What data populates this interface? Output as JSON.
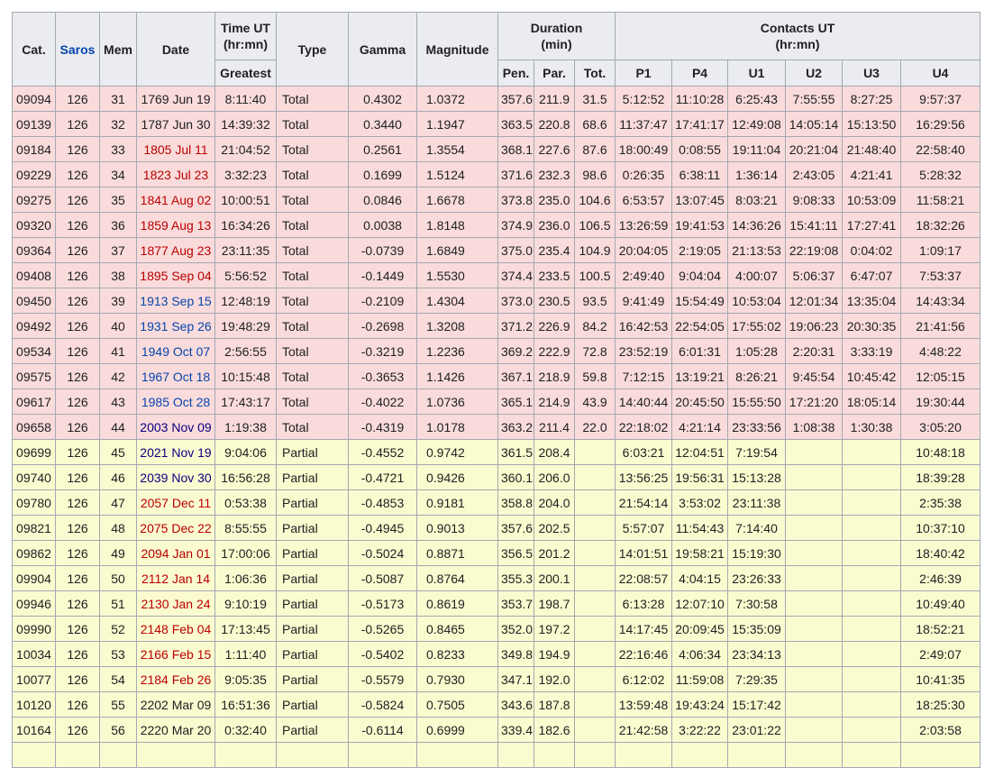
{
  "table": {
    "header": {
      "cat": "Cat.",
      "saros": "Saros",
      "mem": "Mem",
      "date": "Date",
      "time_ut_1": "Time UT",
      "time_ut_2": "(hr:mn)",
      "greatest": "Greatest",
      "type": "Type",
      "gamma": "Gamma",
      "magnitude": "Magnitude",
      "duration_1": "Duration",
      "duration_2": "(min)",
      "pen": "Pen.",
      "par": "Par.",
      "tot": "Tot.",
      "contacts_1": "Contacts UT",
      "contacts_2": "(hr:mn)",
      "p1": "P1",
      "p4": "P4",
      "u1": "U1",
      "u2": "U2",
      "u3": "U3",
      "u4": "U4"
    },
    "colors": {
      "header_bg": "#eaecf0",
      "border": "#a2a9b1",
      "text": "#202122",
      "total_row_bg": "#fadbdb",
      "partial_row_bg": "#fbfbd0",
      "link_blue": "#0645ad",
      "link_visited": "#0b0080",
      "link_red": "#ba0000",
      "page_bg": "#ffffff"
    },
    "rows": [
      {
        "cat": "09094",
        "saros": "126",
        "mem": "31",
        "date": "1769 Jun 19",
        "date_link": "plain",
        "greatest": "8:11:40",
        "type": "Total",
        "gamma": "0.4302",
        "magnitude": "1.0372",
        "pen": "357.6",
        "par": "211.9",
        "tot": "31.5",
        "p1": "5:12:52",
        "p4": "11:10:28",
        "u1": "6:25:43",
        "u2": "7:55:55",
        "u3": "8:27:25",
        "u4": "9:57:37"
      },
      {
        "cat": "09139",
        "saros": "126",
        "mem": "32",
        "date": "1787 Jun 30",
        "date_link": "plain",
        "greatest": "14:39:32",
        "type": "Total",
        "gamma": "0.3440",
        "magnitude": "1.1947",
        "pen": "363.5",
        "par": "220.8",
        "tot": "68.6",
        "p1": "11:37:47",
        "p4": "17:41:17",
        "u1": "12:49:08",
        "u2": "14:05:14",
        "u3": "15:13:50",
        "u4": "16:29:56"
      },
      {
        "cat": "09184",
        "saros": "126",
        "mem": "33",
        "date": "1805 Jul 11",
        "date_link": "red",
        "greatest": "21:04:52",
        "type": "Total",
        "gamma": "0.2561",
        "magnitude": "1.3554",
        "pen": "368.1",
        "par": "227.6",
        "tot": "87.6",
        "p1": "18:00:49",
        "p4": "0:08:55",
        "u1": "19:11:04",
        "u2": "20:21:04",
        "u3": "21:48:40",
        "u4": "22:58:40"
      },
      {
        "cat": "09229",
        "saros": "126",
        "mem": "34",
        "date": "1823 Jul 23",
        "date_link": "red",
        "greatest": "3:32:23",
        "type": "Total",
        "gamma": "0.1699",
        "magnitude": "1.5124",
        "pen": "371.6",
        "par": "232.3",
        "tot": "98.6",
        "p1": "0:26:35",
        "p4": "6:38:11",
        "u1": "1:36:14",
        "u2": "2:43:05",
        "u3": "4:21:41",
        "u4": "5:28:32"
      },
      {
        "cat": "09275",
        "saros": "126",
        "mem": "35",
        "date": "1841 Aug 02",
        "date_link": "red",
        "greatest": "10:00:51",
        "type": "Total",
        "gamma": "0.0846",
        "magnitude": "1.6678",
        "pen": "373.8",
        "par": "235.0",
        "tot": "104.6",
        "p1": "6:53:57",
        "p4": "13:07:45",
        "u1": "8:03:21",
        "u2": "9:08:33",
        "u3": "10:53:09",
        "u4": "11:58:21"
      },
      {
        "cat": "09320",
        "saros": "126",
        "mem": "36",
        "date": "1859 Aug 13",
        "date_link": "red",
        "greatest": "16:34:26",
        "type": "Total",
        "gamma": "0.0038",
        "magnitude": "1.8148",
        "pen": "374.9",
        "par": "236.0",
        "tot": "106.5",
        "p1": "13:26:59",
        "p4": "19:41:53",
        "u1": "14:36:26",
        "u2": "15:41:11",
        "u3": "17:27:41",
        "u4": "18:32:26"
      },
      {
        "cat": "09364",
        "saros": "126",
        "mem": "37",
        "date": "1877 Aug 23",
        "date_link": "red",
        "greatest": "23:11:35",
        "type": "Total",
        "gamma": "-0.0739",
        "magnitude": "1.6849",
        "pen": "375.0",
        "par": "235.4",
        "tot": "104.9",
        "p1": "20:04:05",
        "p4": "2:19:05",
        "u1": "21:13:53",
        "u2": "22:19:08",
        "u3": "0:04:02",
        "u4": "1:09:17"
      },
      {
        "cat": "09408",
        "saros": "126",
        "mem": "38",
        "date": "1895 Sep 04",
        "date_link": "red",
        "greatest": "5:56:52",
        "type": "Total",
        "gamma": "-0.1449",
        "magnitude": "1.5530",
        "pen": "374.4",
        "par": "233.5",
        "tot": "100.5",
        "p1": "2:49:40",
        "p4": "9:04:04",
        "u1": "4:00:07",
        "u2": "5:06:37",
        "u3": "6:47:07",
        "u4": "7:53:37"
      },
      {
        "cat": "09450",
        "saros": "126",
        "mem": "39",
        "date": "1913 Sep 15",
        "date_link": "blue",
        "greatest": "12:48:19",
        "type": "Total",
        "gamma": "-0.2109",
        "magnitude": "1.4304",
        "pen": "373.0",
        "par": "230.5",
        "tot": "93.5",
        "p1": "9:41:49",
        "p4": "15:54:49",
        "u1": "10:53:04",
        "u2": "12:01:34",
        "u3": "13:35:04",
        "u4": "14:43:34"
      },
      {
        "cat": "09492",
        "saros": "126",
        "mem": "40",
        "date": "1931 Sep 26",
        "date_link": "blue",
        "greatest": "19:48:29",
        "type": "Total",
        "gamma": "-0.2698",
        "magnitude": "1.3208",
        "pen": "371.2",
        "par": "226.9",
        "tot": "84.2",
        "p1": "16:42:53",
        "p4": "22:54:05",
        "u1": "17:55:02",
        "u2": "19:06:23",
        "u3": "20:30:35",
        "u4": "21:41:56"
      },
      {
        "cat": "09534",
        "saros": "126",
        "mem": "41",
        "date": "1949 Oct 07",
        "date_link": "blue",
        "greatest": "2:56:55",
        "type": "Total",
        "gamma": "-0.3219",
        "magnitude": "1.2236",
        "pen": "369.2",
        "par": "222.9",
        "tot": "72.8",
        "p1": "23:52:19",
        "p4": "6:01:31",
        "u1": "1:05:28",
        "u2": "2:20:31",
        "u3": "3:33:19",
        "u4": "4:48:22"
      },
      {
        "cat": "09575",
        "saros": "126",
        "mem": "42",
        "date": "1967 Oct 18",
        "date_link": "blue",
        "greatest": "10:15:48",
        "type": "Total",
        "gamma": "-0.3653",
        "magnitude": "1.1426",
        "pen": "367.1",
        "par": "218.9",
        "tot": "59.8",
        "p1": "7:12:15",
        "p4": "13:19:21",
        "u1": "8:26:21",
        "u2": "9:45:54",
        "u3": "10:45:42",
        "u4": "12:05:15"
      },
      {
        "cat": "09617",
        "saros": "126",
        "mem": "43",
        "date": "1985 Oct 28",
        "date_link": "blue",
        "greatest": "17:43:17",
        "type": "Total",
        "gamma": "-0.4022",
        "magnitude": "1.0736",
        "pen": "365.1",
        "par": "214.9",
        "tot": "43.9",
        "p1": "14:40:44",
        "p4": "20:45:50",
        "u1": "15:55:50",
        "u2": "17:21:20",
        "u3": "18:05:14",
        "u4": "19:30:44"
      },
      {
        "cat": "09658",
        "saros": "126",
        "mem": "44",
        "date": "2003 Nov 09",
        "date_link": "visited",
        "greatest": "1:19:38",
        "type": "Total",
        "gamma": "-0.4319",
        "magnitude": "1.0178",
        "pen": "363.2",
        "par": "211.4",
        "tot": "22.0",
        "p1": "22:18:02",
        "p4": "4:21:14",
        "u1": "23:33:56",
        "u2": "1:08:38",
        "u3": "1:30:38",
        "u4": "3:05:20"
      },
      {
        "cat": "09699",
        "saros": "126",
        "mem": "45",
        "date": "2021 Nov 19",
        "date_link": "visited",
        "greatest": "9:04:06",
        "type": "Partial",
        "gamma": "-0.4552",
        "magnitude": "0.9742",
        "pen": "361.5",
        "par": "208.4",
        "tot": "",
        "p1": "6:03:21",
        "p4": "12:04:51",
        "u1": "7:19:54",
        "u2": "",
        "u3": "",
        "u4": "10:48:18"
      },
      {
        "cat": "09740",
        "saros": "126",
        "mem": "46",
        "date": "2039 Nov 30",
        "date_link": "visited",
        "greatest": "16:56:28",
        "type": "Partial",
        "gamma": "-0.4721",
        "magnitude": "0.9426",
        "pen": "360.1",
        "par": "206.0",
        "tot": "",
        "p1": "13:56:25",
        "p4": "19:56:31",
        "u1": "15:13:28",
        "u2": "",
        "u3": "",
        "u4": "18:39:28"
      },
      {
        "cat": "09780",
        "saros": "126",
        "mem": "47",
        "date": "2057 Dec 11",
        "date_link": "red",
        "greatest": "0:53:38",
        "type": "Partial",
        "gamma": "-0.4853",
        "magnitude": "0.9181",
        "pen": "358.8",
        "par": "204.0",
        "tot": "",
        "p1": "21:54:14",
        "p4": "3:53:02",
        "u1": "23:11:38",
        "u2": "",
        "u3": "",
        "u4": "2:35:38"
      },
      {
        "cat": "09821",
        "saros": "126",
        "mem": "48",
        "date": "2075 Dec 22",
        "date_link": "red",
        "greatest": "8:55:55",
        "type": "Partial",
        "gamma": "-0.4945",
        "magnitude": "0.9013",
        "pen": "357.6",
        "par": "202.5",
        "tot": "",
        "p1": "5:57:07",
        "p4": "11:54:43",
        "u1": "7:14:40",
        "u2": "",
        "u3": "",
        "u4": "10:37:10"
      },
      {
        "cat": "09862",
        "saros": "126",
        "mem": "49",
        "date": "2094 Jan 01",
        "date_link": "red",
        "greatest": "17:00:06",
        "type": "Partial",
        "gamma": "-0.5024",
        "magnitude": "0.8871",
        "pen": "356.5",
        "par": "201.2",
        "tot": "",
        "p1": "14:01:51",
        "p4": "19:58:21",
        "u1": "15:19:30",
        "u2": "",
        "u3": "",
        "u4": "18:40:42"
      },
      {
        "cat": "09904",
        "saros": "126",
        "mem": "50",
        "date": "2112 Jan 14",
        "date_link": "red",
        "greatest": "1:06:36",
        "type": "Partial",
        "gamma": "-0.5087",
        "magnitude": "0.8764",
        "pen": "355.3",
        "par": "200.1",
        "tot": "",
        "p1": "22:08:57",
        "p4": "4:04:15",
        "u1": "23:26:33",
        "u2": "",
        "u3": "",
        "u4": "2:46:39"
      },
      {
        "cat": "09946",
        "saros": "126",
        "mem": "51",
        "date": "2130 Jan 24",
        "date_link": "red",
        "greatest": "9:10:19",
        "type": "Partial",
        "gamma": "-0.5173",
        "magnitude": "0.8619",
        "pen": "353.7",
        "par": "198.7",
        "tot": "",
        "p1": "6:13:28",
        "p4": "12:07:10",
        "u1": "7:30:58",
        "u2": "",
        "u3": "",
        "u4": "10:49:40"
      },
      {
        "cat": "09990",
        "saros": "126",
        "mem": "52",
        "date": "2148 Feb 04",
        "date_link": "red",
        "greatest": "17:13:45",
        "type": "Partial",
        "gamma": "-0.5265",
        "magnitude": "0.8465",
        "pen": "352.0",
        "par": "197.2",
        "tot": "",
        "p1": "14:17:45",
        "p4": "20:09:45",
        "u1": "15:35:09",
        "u2": "",
        "u3": "",
        "u4": "18:52:21"
      },
      {
        "cat": "10034",
        "saros": "126",
        "mem": "53",
        "date": "2166 Feb 15",
        "date_link": "red",
        "greatest": "1:11:40",
        "type": "Partial",
        "gamma": "-0.5402",
        "magnitude": "0.8233",
        "pen": "349.8",
        "par": "194.9",
        "tot": "",
        "p1": "22:16:46",
        "p4": "4:06:34",
        "u1": "23:34:13",
        "u2": "",
        "u3": "",
        "u4": "2:49:07"
      },
      {
        "cat": "10077",
        "saros": "126",
        "mem": "54",
        "date": "2184 Feb 26",
        "date_link": "red",
        "greatest": "9:05:35",
        "type": "Partial",
        "gamma": "-0.5579",
        "magnitude": "0.7930",
        "pen": "347.1",
        "par": "192.0",
        "tot": "",
        "p1": "6:12:02",
        "p4": "11:59:08",
        "u1": "7:29:35",
        "u2": "",
        "u3": "",
        "u4": "10:41:35"
      },
      {
        "cat": "10120",
        "saros": "126",
        "mem": "55",
        "date": "2202 Mar 09",
        "date_link": "plain",
        "greatest": "16:51:36",
        "type": "Partial",
        "gamma": "-0.5824",
        "magnitude": "0.7505",
        "pen": "343.6",
        "par": "187.8",
        "tot": "",
        "p1": "13:59:48",
        "p4": "19:43:24",
        "u1": "15:17:42",
        "u2": "",
        "u3": "",
        "u4": "18:25:30"
      },
      {
        "cat": "10164",
        "saros": "126",
        "mem": "56",
        "date": "2220 Mar 20",
        "date_link": "plain",
        "greatest": "0:32:40",
        "type": "Partial",
        "gamma": "-0.6114",
        "magnitude": "0.6999",
        "pen": "339.4",
        "par": "182.6",
        "tot": "",
        "p1": "21:42:58",
        "p4": "3:22:22",
        "u1": "23:01:22",
        "u2": "",
        "u3": "",
        "u4": "2:03:58"
      }
    ]
  }
}
